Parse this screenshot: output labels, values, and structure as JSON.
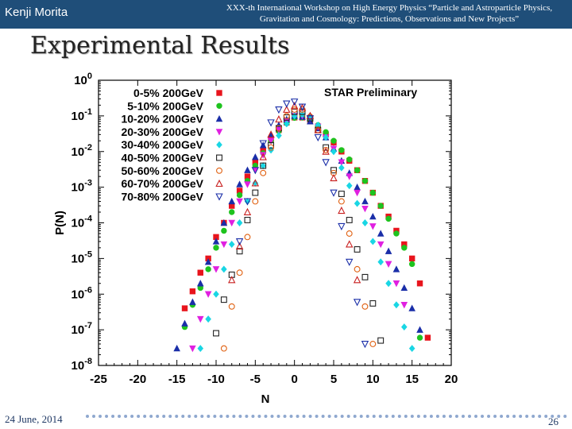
{
  "header": {
    "author": "Kenji Morita",
    "conference": "XXX-th International Workshop on High Energy Physics “Particle and Astroparticle Physics, Gravitation and Cosmology: Predictions, Observations and New Projects”"
  },
  "slide": {
    "title": "Experimental Results"
  },
  "footer": {
    "date": "24 June, 2014",
    "page": "26"
  },
  "chart_data": {
    "type": "scatter",
    "annotation": "STAR Preliminary",
    "xlabel": "N",
    "ylabel": "P(N)",
    "xlim": [
      -25,
      20
    ],
    "ylim": [
      1e-08,
      1
    ],
    "yscale": "log",
    "grid": false,
    "legend_position": "top-left",
    "xticks": [
      "-25",
      "-20",
      "-15",
      "-10",
      "-5",
      "0",
      "5",
      "10",
      "15",
      "20"
    ],
    "yticks": [
      {
        "base": "10",
        "exp": "0"
      },
      {
        "base": "10",
        "exp": "-1"
      },
      {
        "base": "10",
        "exp": "-2"
      },
      {
        "base": "10",
        "exp": "-3"
      },
      {
        "base": "10",
        "exp": "-4"
      },
      {
        "base": "10",
        "exp": "-5"
      },
      {
        "base": "10",
        "exp": "-6"
      },
      {
        "base": "10",
        "exp": "-7"
      },
      {
        "base": "10",
        "exp": "-8"
      }
    ],
    "series": [
      {
        "name": "0-5% 200GeV",
        "marker": "square-filled",
        "color": "#e8141c",
        "points": [
          [
            -14,
            4e-07
          ],
          [
            -13,
            1.2e-06
          ],
          [
            -12,
            4e-06
          ],
          [
            -11,
            1e-05
          ],
          [
            -10,
            4e-05
          ],
          [
            -9,
            0.0001
          ],
          [
            -8,
            0.0003
          ],
          [
            -7,
            0.0008
          ],
          [
            -6,
            0.002
          ],
          [
            -5,
            0.005
          ],
          [
            -4,
            0.011
          ],
          [
            -3,
            0.022
          ],
          [
            -2,
            0.04
          ],
          [
            -1,
            0.065
          ],
          [
            0,
            0.09
          ],
          [
            1,
            0.09
          ],
          [
            2,
            0.07
          ],
          [
            3,
            0.05
          ],
          [
            4,
            0.03
          ],
          [
            5,
            0.018
          ],
          [
            6,
            0.01
          ],
          [
            7,
            0.0055
          ],
          [
            8,
            0.003
          ],
          [
            9,
            0.0015
          ],
          [
            10,
            0.0007
          ],
          [
            11,
            0.0003
          ],
          [
            12,
            0.00015
          ],
          [
            13,
            6e-05
          ],
          [
            14,
            2.5e-05
          ],
          [
            15,
            1e-05
          ],
          [
            16,
            2e-06
          ],
          [
            17,
            6e-08
          ]
        ]
      },
      {
        "name": "5-10% 200GeV",
        "marker": "circle-filled",
        "color": "#1ec31e",
        "points": [
          [
            -14,
            1.2e-07
          ],
          [
            -13,
            5e-07
          ],
          [
            -12,
            1.5e-06
          ],
          [
            -11,
            5e-06
          ],
          [
            -10,
            2e-05
          ],
          [
            -9,
            6e-05
          ],
          [
            -8,
            0.0002
          ],
          [
            -7,
            0.0006
          ],
          [
            -6,
            0.0015
          ],
          [
            -5,
            0.004
          ],
          [
            -4,
            0.009
          ],
          [
            -3,
            0.02
          ],
          [
            -2,
            0.038
          ],
          [
            -1,
            0.062
          ],
          [
            0,
            0.088
          ],
          [
            1,
            0.09
          ],
          [
            2,
            0.075
          ],
          [
            3,
            0.055
          ],
          [
            4,
            0.035
          ],
          [
            5,
            0.02
          ],
          [
            6,
            0.011
          ],
          [
            7,
            0.006
          ],
          [
            8,
            0.003
          ],
          [
            9,
            0.0015
          ],
          [
            10,
            0.0007
          ],
          [
            11,
            0.0003
          ],
          [
            12,
            0.00013
          ],
          [
            13,
            5e-05
          ],
          [
            14,
            2e-05
          ],
          [
            15,
            7e-06
          ],
          [
            16,
            6e-08
          ]
        ]
      },
      {
        "name": "10-20% 200GeV",
        "marker": "triangle-up-filled",
        "color": "#1a2ea8",
        "points": [
          [
            -15,
            3e-08
          ],
          [
            -14,
            1.5e-07
          ],
          [
            -13,
            6e-07
          ],
          [
            -12,
            2e-06
          ],
          [
            -11,
            8e-06
          ],
          [
            -10,
            3e-05
          ],
          [
            -9,
            0.0001
          ],
          [
            -8,
            0.0004
          ],
          [
            -7,
            0.0012
          ],
          [
            -6,
            0.003
          ],
          [
            -5,
            0.007
          ],
          [
            -4,
            0.015
          ],
          [
            -3,
            0.03
          ],
          [
            -2,
            0.055
          ],
          [
            -1,
            0.08
          ],
          [
            0,
            0.1
          ],
          [
            1,
            0.095
          ],
          [
            2,
            0.07
          ],
          [
            3,
            0.045
          ],
          [
            4,
            0.025
          ],
          [
            5,
            0.012
          ],
          [
            6,
            0.0055
          ],
          [
            7,
            0.0025
          ],
          [
            8,
            0.001
          ],
          [
            9,
            0.0004
          ],
          [
            10,
            0.00015
          ],
          [
            11,
            5e-05
          ],
          [
            12,
            1.6e-05
          ],
          [
            13,
            5e-06
          ],
          [
            14,
            1.5e-06
          ],
          [
            15,
            4e-07
          ],
          [
            16,
            1e-07
          ]
        ]
      },
      {
        "name": "20-30% 200GeV",
        "marker": "triangle-down-filled",
        "color": "#e020e0",
        "points": [
          [
            -13,
            3e-08
          ],
          [
            -12,
            2e-07
          ],
          [
            -11,
            1e-06
          ],
          [
            -10,
            5e-06
          ],
          [
            -9,
            2.5e-05
          ],
          [
            -8,
            0.0001
          ],
          [
            -7,
            0.0004
          ],
          [
            -6,
            0.0012
          ],
          [
            -5,
            0.003
          ],
          [
            -4,
            0.008
          ],
          [
            -3,
            0.02
          ],
          [
            -2,
            0.04
          ],
          [
            -1,
            0.07
          ],
          [
            0,
            0.1
          ],
          [
            1,
            0.1
          ],
          [
            2,
            0.08
          ],
          [
            3,
            0.05
          ],
          [
            4,
            0.025
          ],
          [
            5,
            0.012
          ],
          [
            6,
            0.005
          ],
          [
            7,
            0.002
          ],
          [
            8,
            0.0007
          ],
          [
            9,
            0.00025
          ],
          [
            10,
            8e-05
          ],
          [
            11,
            2.5e-05
          ],
          [
            12,
            7e-06
          ],
          [
            13,
            2e-06
          ],
          [
            14,
            5e-07
          ]
        ]
      },
      {
        "name": "30-40% 200GeV",
        "marker": "diamond-filled",
        "color": "#19d6e4",
        "points": [
          [
            -12,
            3e-08
          ],
          [
            -11,
            2e-07
          ],
          [
            -10,
            1e-06
          ],
          [
            -9,
            5e-06
          ],
          [
            -8,
            2.5e-05
          ],
          [
            -7,
            0.0001
          ],
          [
            -6,
            0.0004
          ],
          [
            -5,
            0.0013
          ],
          [
            -4,
            0.004
          ],
          [
            -3,
            0.011
          ],
          [
            -2,
            0.028
          ],
          [
            -1,
            0.06
          ],
          [
            0,
            0.1
          ],
          [
            1,
            0.11
          ],
          [
            2,
            0.09
          ],
          [
            3,
            0.055
          ],
          [
            4,
            0.025
          ],
          [
            5,
            0.01
          ],
          [
            6,
            0.0035
          ],
          [
            7,
            0.0011
          ],
          [
            8,
            0.00035
          ],
          [
            9,
            0.0001
          ],
          [
            10,
            3e-05
          ],
          [
            11,
            8e-06
          ],
          [
            12,
            2e-06
          ],
          [
            13,
            5e-07
          ],
          [
            14,
            1.2e-07
          ],
          [
            15,
            3e-08
          ]
        ]
      },
      {
        "name": "40-50% 200GeV",
        "marker": "square-open",
        "color": "#222222",
        "points": [
          [
            -10,
            8e-08
          ],
          [
            -9,
            7e-07
          ],
          [
            -8,
            3.5e-06
          ],
          [
            -7,
            1.6e-05
          ],
          [
            -6,
            0.00012
          ],
          [
            -5,
            0.0007
          ],
          [
            -4,
            0.004
          ],
          [
            -3,
            0.015
          ],
          [
            -2,
            0.045
          ],
          [
            -1,
            0.09
          ],
          [
            0,
            0.13
          ],
          [
            1,
            0.13
          ],
          [
            2,
            0.085
          ],
          [
            3,
            0.04
          ],
          [
            4,
            0.013
          ],
          [
            5,
            0.003
          ],
          [
            6,
            0.00065
          ],
          [
            7,
            0.00012
          ],
          [
            8,
            1.8e-05
          ],
          [
            9,
            3e-06
          ],
          [
            10,
            5.5e-07
          ],
          [
            11,
            5e-08
          ]
        ]
      },
      {
        "name": "50-60% 200GeV",
        "marker": "circle-open",
        "color": "#e06010",
        "points": [
          [
            -9,
            3e-08
          ],
          [
            -8,
            4.5e-07
          ],
          [
            -7,
            4e-06
          ],
          [
            -6,
            4e-05
          ],
          [
            -5,
            0.0004
          ],
          [
            -4,
            0.0025
          ],
          [
            -3,
            0.013
          ],
          [
            -2,
            0.045
          ],
          [
            -1,
            0.1
          ],
          [
            0,
            0.15
          ],
          [
            1,
            0.15
          ],
          [
            2,
            0.095
          ],
          [
            3,
            0.04
          ],
          [
            4,
            0.011
          ],
          [
            5,
            0.0025
          ],
          [
            6,
            0.0004
          ],
          [
            7,
            5e-05
          ],
          [
            8,
            5e-06
          ],
          [
            9,
            4.5e-07
          ],
          [
            10,
            4e-08
          ]
        ]
      },
      {
        "name": "60-70% 200GeV",
        "marker": "triangle-up-open",
        "color": "#c81e1e",
        "points": [
          [
            -8,
            2.5e-06
          ],
          [
            -7,
            2.2e-05
          ],
          [
            -6,
            0.0002
          ],
          [
            -5,
            0.0013
          ],
          [
            -4,
            0.007
          ],
          [
            -3,
            0.03
          ],
          [
            -2,
            0.08
          ],
          [
            -1,
            0.15
          ],
          [
            0,
            0.19
          ],
          [
            1,
            0.17
          ],
          [
            2,
            0.1
          ],
          [
            3,
            0.04
          ],
          [
            4,
            0.01
          ],
          [
            5,
            0.0018
          ],
          [
            6,
            0.00022
          ],
          [
            7,
            2.5e-05
          ],
          [
            8,
            2.5e-06
          ]
        ]
      },
      {
        "name": "70-80% 200GeV",
        "marker": "triangle-down-open",
        "color": "#1a2ea8",
        "points": [
          [
            -7,
            3e-05
          ],
          [
            -6,
            0.0004
          ],
          [
            -5,
            0.003
          ],
          [
            -4,
            0.017
          ],
          [
            -3,
            0.065
          ],
          [
            -2,
            0.15
          ],
          [
            -1,
            0.22
          ],
          [
            0,
            0.25
          ],
          [
            1,
            0.18
          ],
          [
            2,
            0.085
          ],
          [
            3,
            0.025
          ],
          [
            4,
            0.005
          ],
          [
            5,
            0.0007
          ],
          [
            6,
            8e-05
          ],
          [
            7,
            8e-06
          ],
          [
            8,
            6e-07
          ],
          [
            9,
            4e-08
          ]
        ]
      }
    ]
  }
}
